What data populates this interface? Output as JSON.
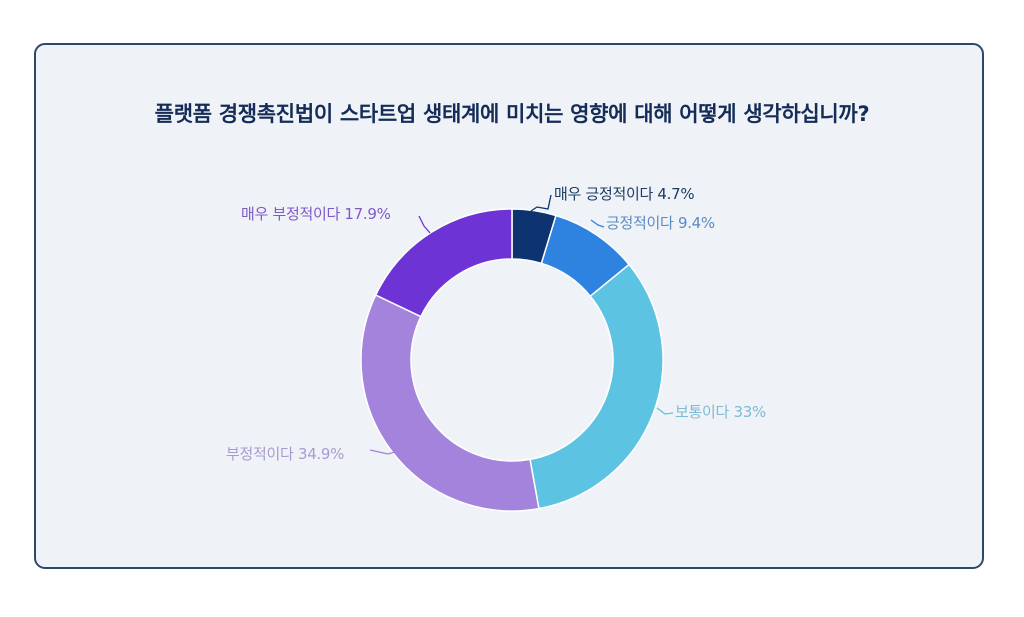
{
  "title": "플랫폼 경쟁촉진법이 스타트업 생태계에 미치는 영향에 대해 어떻게 생각하십니까?",
  "labels": {
    "very_positive": "매우 긍정적이다 4.7%",
    "positive": "긍정적이다 9.4%",
    "neutral": "보통이다 33%",
    "negative": "부정적이다 34.9%",
    "very_negative": "매우 부정적이다 17.9%"
  },
  "colors": {
    "very_positive": "#0d3370",
    "positive": "#2e82e0",
    "neutral": "#5cc3e3",
    "negative": "#a383db",
    "very_negative": "#6e33d4",
    "card_bg": "#eff3f7",
    "card_border": "#2b4a6b",
    "title": "#142c57"
  },
  "chart_data": {
    "type": "pie",
    "variant": "donut",
    "title": "플랫폼 경쟁촉진법이 스타트업 생태계에 미치는 영향에 대해 어떻게 생각하십니까?",
    "categories": [
      "매우 긍정적이다",
      "긍정적이다",
      "보통이다",
      "부정적이다",
      "매우 부정적이다"
    ],
    "values": [
      4.7,
      9.4,
      33,
      34.9,
      17.9
    ],
    "unit": "%",
    "colors": [
      "#0d3370",
      "#2e82e0",
      "#5cc3e3",
      "#a383db",
      "#6e33d4"
    ],
    "start_angle": "12 o'clock",
    "direction": "clockwise",
    "legend": "none (outside labels with leader lines)"
  }
}
